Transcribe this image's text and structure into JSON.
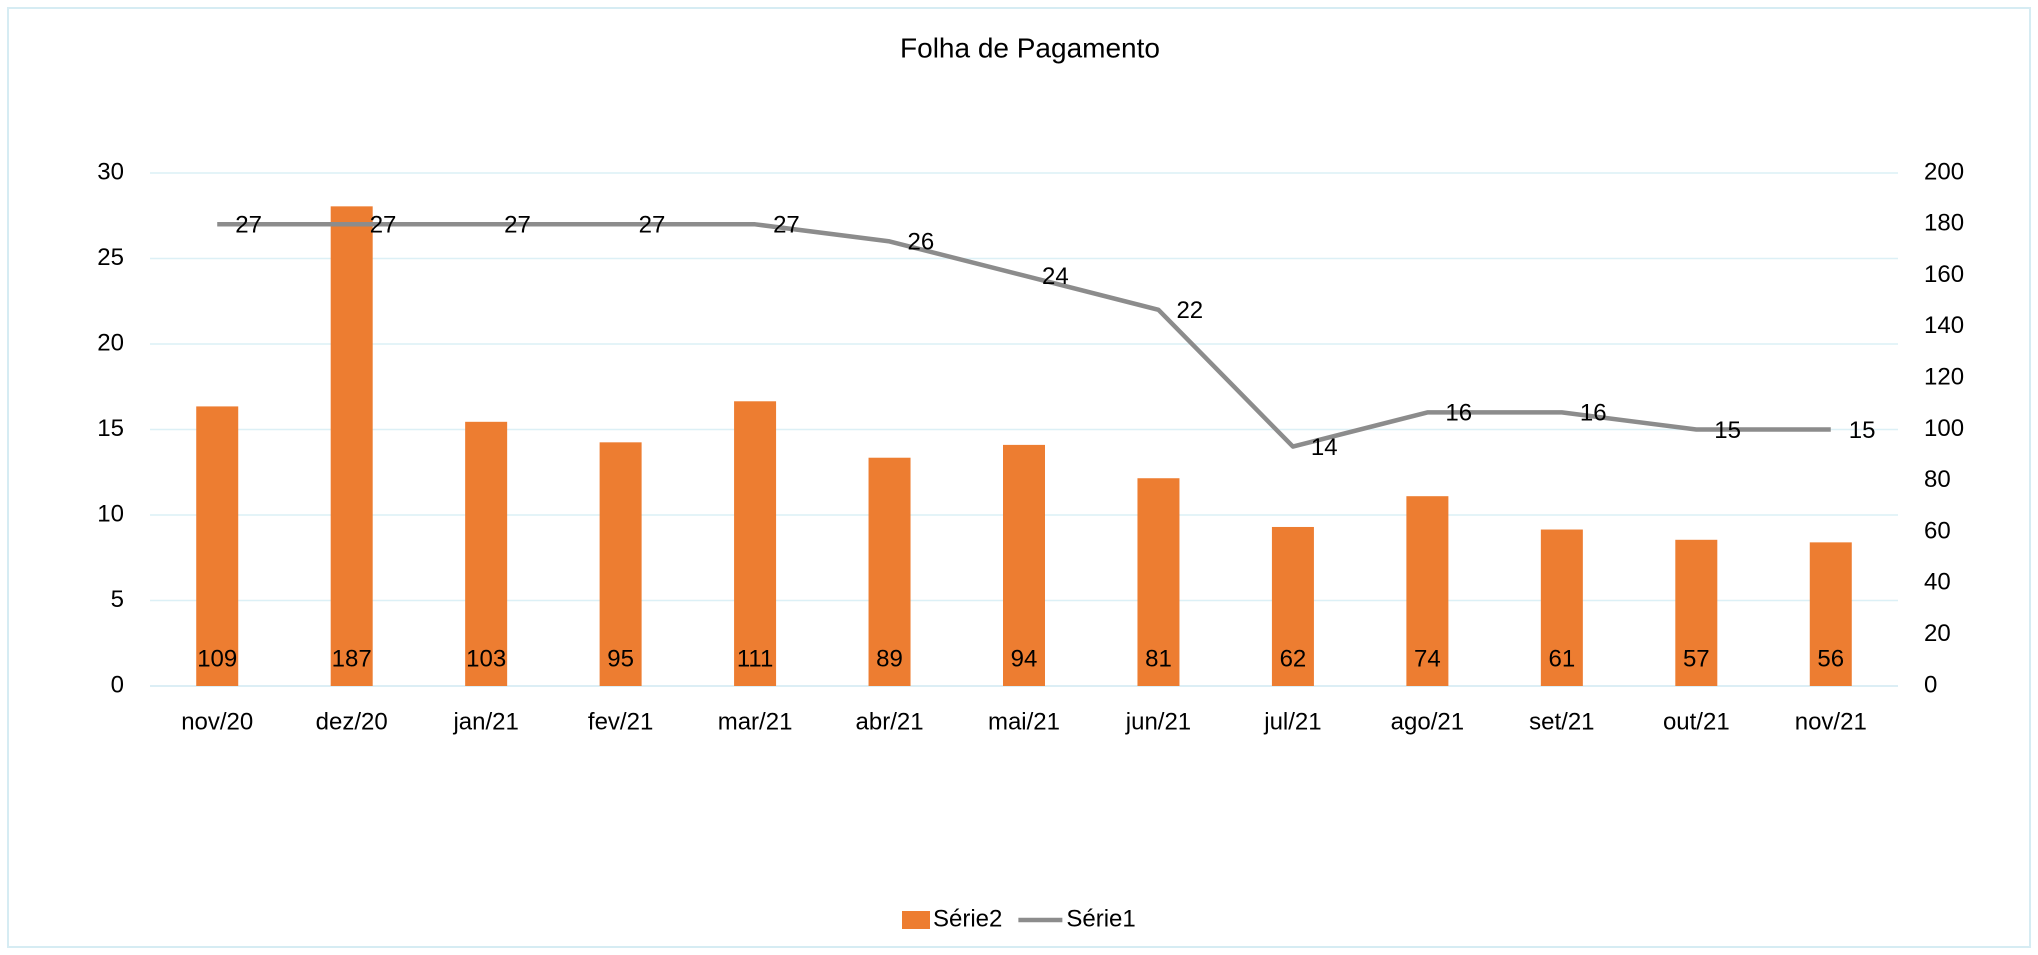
{
  "chart_data": {
    "type": "bar_line",
    "title": "Folha de Pagamento",
    "categories": [
      "nov/20",
      "dez/20",
      "jan/21",
      "fev/21",
      "mar/21",
      "abr/21",
      "mai/21",
      "jun/21",
      "jul/21",
      "ago/21",
      "set/21",
      "out/21",
      "nov/21"
    ],
    "series": [
      {
        "name": "Série2",
        "type": "bar",
        "axis": "y2",
        "color": "#ed7d31",
        "values": [
          109,
          187,
          103,
          95,
          111,
          89,
          94,
          81,
          62,
          74,
          61,
          57,
          56
        ]
      },
      {
        "name": "Série1",
        "type": "line",
        "axis": "y",
        "color": "#8c8c8c",
        "values": [
          27,
          27,
          27,
          27,
          27,
          26,
          24,
          22,
          14,
          16,
          16,
          15,
          15
        ]
      }
    ],
    "ylim": [
      0,
      30
    ],
    "yticks": [
      0,
      5,
      10,
      15,
      20,
      25,
      30
    ],
    "y2lim": [
      0,
      200
    ],
    "y2ticks": [
      0,
      20,
      40,
      60,
      80,
      100,
      120,
      140,
      160,
      180,
      200
    ],
    "grid": true,
    "legend": "bottom"
  }
}
